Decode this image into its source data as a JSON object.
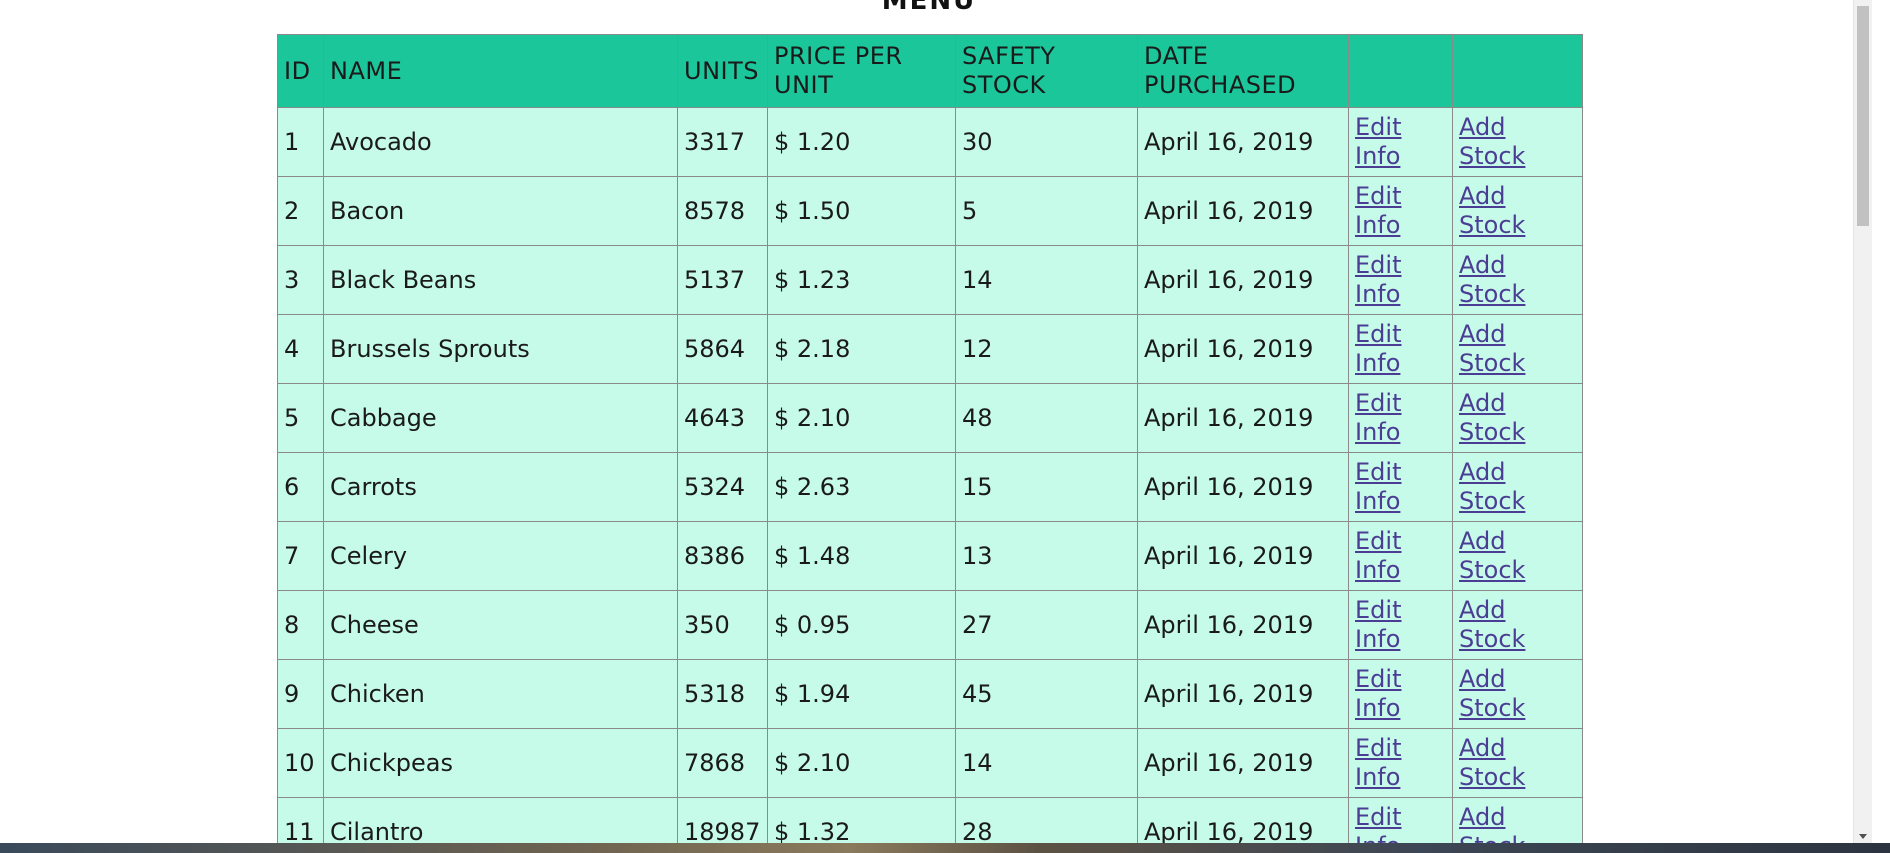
{
  "page": {
    "title": "MENU"
  },
  "table": {
    "headers": [
      "ID",
      "NAME",
      "UNITS",
      "PRICE PER UNIT",
      "SAFETY STOCK",
      "DATE PURCHASED",
      "",
      ""
    ],
    "rows": [
      {
        "id": "1",
        "name": "Avocado",
        "units": "3317",
        "price": "$ 1.20",
        "safety": "30",
        "date": "April 16, 2019",
        "edit": "Edit Info",
        "add": "Add Stock"
      },
      {
        "id": "2",
        "name": "Bacon",
        "units": "8578",
        "price": "$ 1.50",
        "safety": "5",
        "date": "April 16, 2019",
        "edit": "Edit Info",
        "add": "Add Stock"
      },
      {
        "id": "3",
        "name": "Black Beans",
        "units": "5137",
        "price": "$ 1.23",
        "safety": "14",
        "date": "April 16, 2019",
        "edit": "Edit Info",
        "add": "Add Stock"
      },
      {
        "id": "4",
        "name": "Brussels Sprouts",
        "units": "5864",
        "price": "$ 2.18",
        "safety": "12",
        "date": "April 16, 2019",
        "edit": "Edit Info",
        "add": "Add Stock"
      },
      {
        "id": "5",
        "name": "Cabbage",
        "units": "4643",
        "price": "$ 2.10",
        "safety": "48",
        "date": "April 16, 2019",
        "edit": "Edit Info",
        "add": "Add Stock"
      },
      {
        "id": "6",
        "name": "Carrots",
        "units": "5324",
        "price": "$ 2.63",
        "safety": "15",
        "date": "April 16, 2019",
        "edit": "Edit Info",
        "add": "Add Stock"
      },
      {
        "id": "7",
        "name": "Celery",
        "units": "8386",
        "price": "$ 1.48",
        "safety": "13",
        "date": "April 16, 2019",
        "edit": "Edit Info",
        "add": "Add Stock"
      },
      {
        "id": "8",
        "name": "Cheese",
        "units": "350",
        "price": "$ 0.95",
        "safety": "27",
        "date": "April 16, 2019",
        "edit": "Edit Info",
        "add": "Add Stock"
      },
      {
        "id": "9",
        "name": "Chicken",
        "units": "5318",
        "price": "$ 1.94",
        "safety": "45",
        "date": "April 16, 2019",
        "edit": "Edit Info",
        "add": "Add Stock"
      },
      {
        "id": "10",
        "name": "Chickpeas",
        "units": "7868",
        "price": "$ 2.10",
        "safety": "14",
        "date": "April 16, 2019",
        "edit": "Edit Info",
        "add": "Add Stock"
      },
      {
        "id": "11",
        "name": "Cilantro",
        "units": "18987",
        "price": "$ 1.32",
        "safety": "28",
        "date": "April 16, 2019",
        "edit": "Edit Info",
        "add": "Add Stock"
      }
    ]
  },
  "colors": {
    "header_bg": "#1bc69a",
    "row_bg": "#c6fbe9",
    "link": "#4b3d94"
  }
}
